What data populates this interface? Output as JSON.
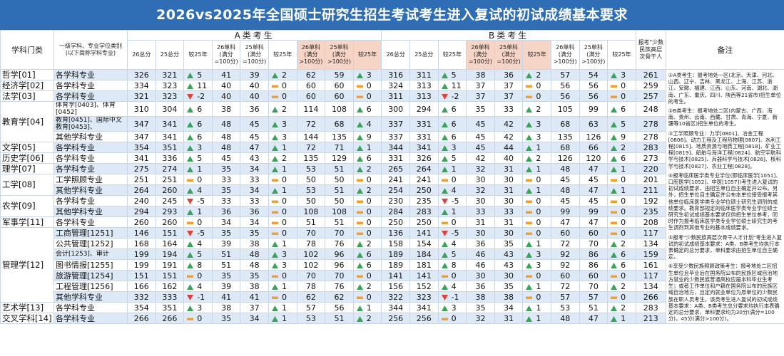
{
  "title": "2026vs2025年全国硕士研究生招生考试考生进入复试的初试成绩基本要求",
  "table": {
    "headers": {
      "category": "学科门类",
      "subject": "一级学科、专业学位类别(以下简称学科专业)",
      "group_a": "A类考生",
      "group_b": "B类考生",
      "columns": [
        "26总分",
        "25总分",
        "较25年",
        "26单科(满分=100分)",
        "25单科(满分=100分)",
        "较25年",
        "26单科(满分>100分)",
        "25单科(满分>100分)",
        "较25年",
        "26总分",
        "25总分",
        "较25年",
        "26单科(满分=100分)",
        "25单科(满分=100分)",
        "较25年",
        "26单科(满分>100分)",
        "25单科(满分>100分)",
        "较25年"
      ],
      "minority": "报考\"少数民族高层次骨干人",
      "remarks": "备注"
    },
    "groups": [
      {
        "category": "哲学[01]",
        "rows": [
          {
            "subject": "各学科专业",
            "values": [
              326,
              321,
              5,
              41,
              39,
              2,
              62,
              59,
              3,
              316,
              311,
              5,
              38,
              36,
              2,
              57,
              54,
              3
            ],
            "minority": 261
          }
        ]
      },
      {
        "category": "经济学[02]",
        "rows": [
          {
            "subject": "各学科专业",
            "values": [
              334,
              323,
              11,
              40,
              40,
              0,
              60,
              60,
              0,
              324,
              313,
              11,
              37,
              37,
              0,
              56,
              56,
              0
            ],
            "minority": 259
          }
        ]
      },
      {
        "category": "法学[03]",
        "rows": [
          {
            "subject": "各学科专业",
            "values": [
              321,
              323,
              -2,
              40,
              40,
              0,
              60,
              60,
              0,
              311,
              313,
              -2,
              37,
              37,
              0,
              56,
              56,
              0
            ],
            "minority": 257
          }
        ]
      },
      {
        "category": "教育学[04]",
        "rows": [
          {
            "subject": "体育学[0403]、体育[0452]",
            "values": [
              310,
              304,
              6,
              38,
              36,
              2,
              114,
              108,
              6,
              300,
              294,
              6,
              35,
              33,
              2,
              105,
              99,
              6
            ],
            "minority": 248
          },
          {
            "subject": "教育[0451]、国际中文教育[0453]、",
            "values": [
              347,
              341,
              6,
              48,
              45,
              3,
              72,
              68,
              4,
              337,
              331,
              6,
              45,
              42,
              3,
              68,
              63,
              5
            ],
            "minority": 278
          },
          {
            "subject": "其他学科专业",
            "values": [
              347,
              341,
              6,
              48,
              45,
              3,
              144,
              135,
              9,
              337,
              331,
              6,
              45,
              42,
              3,
              135,
              126,
              9
            ],
            "minority": 278
          }
        ]
      },
      {
        "category": "文学[05]",
        "rows": [
          {
            "subject": "各学科专业",
            "values": [
              354,
              351,
              3,
              48,
              47,
              1,
              72,
              71,
              1,
              344,
              341,
              3,
              45,
              44,
              1,
              68,
              66,
              2
            ],
            "minority": 283
          }
        ]
      },
      {
        "category": "历史学[06]",
        "rows": [
          {
            "subject": "各学科专业",
            "values": [
              341,
              336,
              5,
              45,
              43,
              2,
              135,
              129,
              6,
              331,
              326,
              5,
              42,
              40,
              2,
              126,
              120,
              6
            ],
            "minority": 273
          }
        ]
      },
      {
        "category": "理学[07]",
        "rows": [
          {
            "subject": "各学科专业",
            "values": [
              275,
              274,
              1,
              35,
              34,
              1,
              53,
              51,
              2,
              265,
              264,
              1,
              32,
              31,
              1,
              48,
              47,
              1
            ],
            "minority": 220
          }
        ]
      },
      {
        "category": "工学[08]",
        "rows": [
          {
            "subject": "工学照顾专业",
            "values": [
              251,
              251,
              0,
              33,
              33,
              0,
              50,
              50,
              0,
              241,
              241,
              0,
              30,
              30,
              0,
              45,
              45,
              0
            ],
            "minority": 201
          },
          {
            "subject": "其他学科专业",
            "values": [
              264,
              260,
              4,
              35,
              34,
              1,
              53,
              51,
              2,
              254,
              250,
              4,
              32,
              31,
              1,
              48,
              47,
              1
            ],
            "minority": 211
          }
        ]
      },
      {
        "category": "农学[09]",
        "rows": [
          {
            "subject": "各学科专业",
            "values": [
              240,
              245,
              -5,
              33,
              33,
              0,
              50,
              50,
              0,
              230,
              235,
              -5,
              30,
              30,
              0,
              45,
              45,
              0
            ],
            "minority": 192
          },
          {
            "subject": "其他学科专业",
            "values": [
              294,
              293,
              1,
              36,
              36,
              0,
              108,
              108,
              0,
              284,
              283,
              1,
              33,
              33,
              0,
              99,
              99,
              0
            ],
            "minority": 235
          }
        ]
      },
      {
        "category": "军事学[11]",
        "rows": [
          {
            "subject": "各学科专业",
            "values": [
              260,
              260,
              0,
              34,
              34,
              0,
              51,
              51,
              0,
              250,
              250,
              0,
              31,
              31,
              0,
              47,
              47,
              0
            ],
            "minority": 208
          }
        ]
      },
      {
        "category": "管理学[12]",
        "rows": [
          {
            "subject": "工商管理[1251]",
            "values": [
              146,
              151,
              -5,
              35,
              35,
              0,
              70,
              70,
              0,
              136,
              141,
              -5,
              30,
              30,
              0,
              60,
              60,
              0
            ],
            "minority": 117
          },
          {
            "subject": "公共管理[1252]",
            "values": [
              168,
              164,
              4,
              39,
              38,
              1,
              78,
              76,
              2,
              158,
              154,
              4,
              36,
              35,
              1,
              72,
              70,
              2
            ],
            "minority": 134
          },
          {
            "subject": "会计[1253]、审计",
            "values": [
              199,
              194,
              5,
              51,
              48,
              3,
              102,
              96,
              6,
              189,
              184,
              5,
              46,
              43,
              3,
              92,
              86,
              6
            ],
            "minority": 159
          },
          {
            "subject": "图书情报[1255]",
            "values": [
              199,
              191,
              8,
              51,
              48,
              3,
              102,
              96,
              6,
              189,
              181,
              8,
              46,
              43,
              3,
              92,
              86,
              6
            ],
            "minority": 161
          },
          {
            "subject": "旅游管理[1254]",
            "values": [
              151,
              151,
              0,
              35,
              35,
              0,
              70,
              70,
              0,
              141,
              141,
              0,
              30,
              30,
              0,
              60,
              60,
              0
            ],
            "minority": 117
          },
          {
            "subject": "工程管理[1256]",
            "values": [
              166,
              162,
              4,
              39,
              38,
              1,
              78,
              76,
              2,
              156,
              152,
              4,
              36,
              35,
              1,
              72,
              70,
              2
            ],
            "minority": 134
          },
          {
            "subject": "其他学科专业",
            "values": [
              332,
              333,
              -1,
              41,
              41,
              0,
              62,
              62,
              0,
              322,
              323,
              -1,
              38,
              38,
              0,
              57,
              57,
              0
            ],
            "minority": 266
          }
        ]
      },
      {
        "category": "艺术学[13]",
        "rows": [
          {
            "subject": "各学科专业",
            "values": [
              354,
              351,
              3,
              38,
              37,
              1,
              57,
              56,
              1,
              344,
              341,
              3,
              35,
              34,
              1,
              53,
              51,
              2
            ],
            "minority": 283
          }
        ]
      },
      {
        "category": "交叉学科[14]",
        "rows": [
          {
            "subject": "各学科专业",
            "values": [
              266,
              266,
              0,
              35,
              34,
              1,
              53,
              51,
              2,
              256,
              256,
              0,
              32,
              31,
              1,
              48,
              47,
              1
            ],
            "minority": 213
          }
        ]
      }
    ],
    "remarks": [
      "①A类考生：报考地处一区(北京、天津、河北、山西、辽宁、吉林、黑龙江、上海、江苏、浙江、安徽、福建、江西、山东、河南、湖北、湖南、广东、重庆、四川、陕西等21省市)招生单位的考生。",
      "②B类考生：报考地处二区(内蒙古、广西、海南、贵州、云南、西藏、甘肃、青海、宁夏、新疆等10省区)招生单位的考生。",
      "③工学照顾专业：力学[0801]、冶金工程[0806]、动力工程及工程热物理[0807]、水利工程[0815]、地质资源与地质工程[0818]、矿业工程[0819]、船舶与海洋工程[0824]、航空宇航科学与技术[0825]、兵器科学与技术[0826]、核科学与技术[0827]、农业工程[0828]。",
      "④报考临床医学类专业学位(即临床医学[1051]、口腔医学[1052]、中医[1057])考生进入复试的初试成绩要求，由招生单位自主确定并公布。另外，招生单位自主确定并公布本单位接受报考其他单位临床医学类专业学位硕士研究生调剂的成绩要求。教育部规定的临床医学类专业学位硕士研究生初试成绩基本要求仅供招生单位参考，同时作为报考临床医学类专业学位硕士研究生的考生调剂到其他专业的基本成绩要求。",
      "⑤报考\"少数民族高层次骨干人才计划\"考生进入复试的初试成绩基本要求：A类、B类考生均执行本表确定的总分要求，单科要求由招生单位自主确定。",
      "⑥享受少数民族照顾政策考生：报考地处二区招生单位且毕业后在国务院公布的民族区域自治地方就业的少数民族普通高校应届本科毕业生考生；或者工作单位和户籍在国务院公布的民族区域自治地方，且定向就业单位为原单位的少数民族在职人员考生，该类考生进入复试的初试成绩基本要求：A类、B类考生总分要求均执行本表确定的总分要求，单科要求均为30分(满分=100分)，45分(满分>100分)。"
    ]
  }
}
